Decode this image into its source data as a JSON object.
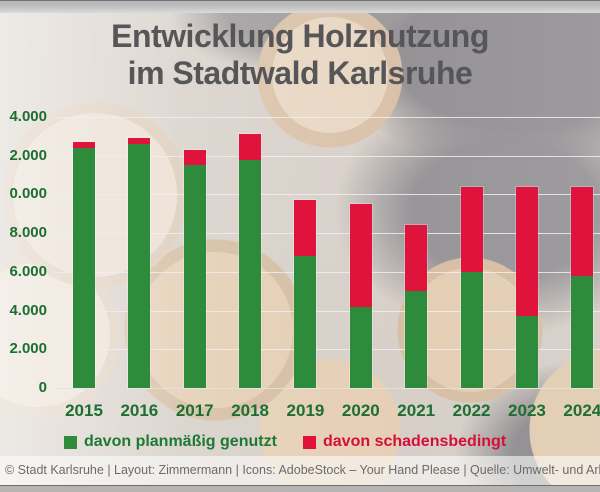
{
  "title": {
    "line1": "Entwicklung Holznutzung",
    "line2": "im Stadtwald Karlsruhe"
  },
  "chart_data": {
    "type": "bar",
    "stacked": true,
    "title": "Entwicklung Holznutzung im Stadtwald Karlsruhe",
    "categories": [
      "2015",
      "2016",
      "2017",
      "2018",
      "2019",
      "2020",
      "2021",
      "2022",
      "2023",
      "2024"
    ],
    "series": [
      {
        "name": "davon planmäßig genutzt",
        "color": "#2e8b3c",
        "values": [
          12400,
          12600,
          11500,
          11800,
          6800,
          4200,
          5000,
          6000,
          3700,
          5800
        ]
      },
      {
        "name": "davon schadensbedingt",
        "color": "#e0133c",
        "values": [
          300,
          300,
          800,
          1300,
          2900,
          5300,
          3400,
          4400,
          6700,
          4600
        ]
      }
    ],
    "totals": [
      12700,
      12900,
      12300,
      13100,
      9700,
      9500,
      8400,
      10400,
      10400,
      10400
    ],
    "xlabel": "",
    "ylabel": "",
    "ylim": [
      0,
      14000
    ],
    "ytick_step": 2000,
    "ytick_labels_visible": [
      "4.000",
      "2.000",
      "0.000",
      "8.000",
      "6.000",
      "4.000",
      "2.000",
      "0"
    ],
    "grid": true,
    "legend_position": "bottom"
  },
  "legend": {
    "items": [
      {
        "label": "davon planmäßig genutzt",
        "color": "#2e8b3c"
      },
      {
        "label": "davon schadensbedingt",
        "color": "#e0133c"
      }
    ]
  },
  "footer": {
    "credit": "© Stadt Karlsruhe | Layout: Zimmermann | Icons: AdobeStock – Your Hand Please | Quelle: Umwelt- und Arbeitsschutz"
  },
  "colors": {
    "title_text": "#565659",
    "axis_label_green": "#1d6f31",
    "legend_green_text": "#1d7a33",
    "legend_red_text": "#d40f3a",
    "footer_text": "#6b6b6b",
    "gridline": "#eeeeee"
  }
}
